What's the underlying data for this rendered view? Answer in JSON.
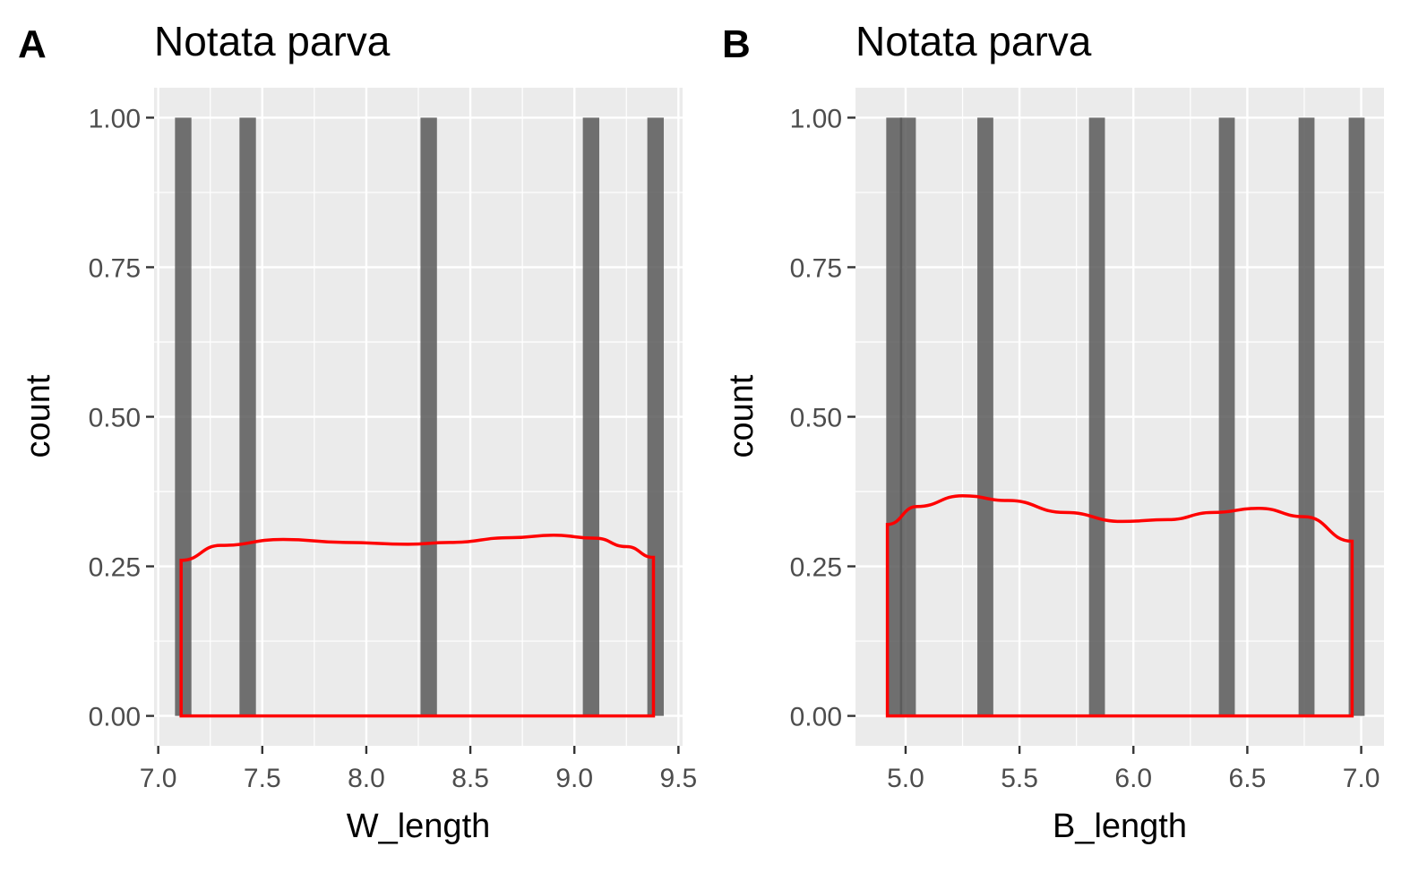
{
  "chart_data": [
    {
      "panel_tag": "A",
      "type": "bar",
      "title": "Notata parva",
      "xlabel": "W_length",
      "ylabel": "count",
      "xlim": [
        6.98,
        9.52
      ],
      "ylim": [
        -0.05,
        1.05
      ],
      "x_ticks": [
        7.0,
        7.5,
        8.0,
        8.5,
        9.0,
        9.5
      ],
      "x_tick_labels": [
        "7.0",
        "7.5",
        "8.0",
        "8.5",
        "9.0",
        "9.5"
      ],
      "y_ticks": [
        0,
        0.25,
        0.5,
        0.75,
        1.0
      ],
      "y_tick_labels": [
        "0.00",
        "0.25",
        "0.50",
        "0.75",
        "1.00"
      ],
      "grid": true,
      "bar_width": 0.079,
      "bar_color": "#595959",
      "bars": [
        {
          "x": 7.12,
          "count": 1
        },
        {
          "x": 7.43,
          "count": 1
        },
        {
          "x": 8.3,
          "count": 1
        },
        {
          "x": 9.08,
          "count": 1
        },
        {
          "x": 9.39,
          "count": 1
        }
      ],
      "density": {
        "color": "#ff0000",
        "x": [
          7.11,
          7.3,
          7.6,
          7.9,
          8.2,
          8.4,
          8.7,
          8.9,
          9.1,
          9.25,
          9.38
        ],
        "y": [
          0.26,
          0.285,
          0.295,
          0.29,
          0.287,
          0.29,
          0.298,
          0.302,
          0.297,
          0.283,
          0.265
        ]
      }
    },
    {
      "panel_tag": "B",
      "type": "bar",
      "title": "Notata parva",
      "xlabel": "B_length",
      "ylabel": "count",
      "xlim": [
        4.78,
        7.1
      ],
      "ylim": [
        -0.05,
        1.05
      ],
      "x_ticks": [
        5.0,
        5.5,
        6.0,
        6.5,
        7.0
      ],
      "x_tick_labels": [
        "5.0",
        "5.5",
        "6.0",
        "6.5",
        "7.0"
      ],
      "y_ticks": [
        0,
        0.25,
        0.5,
        0.75,
        1.0
      ],
      "y_tick_labels": [
        "0.00",
        "0.25",
        "0.50",
        "0.75",
        "1.00"
      ],
      "grid": true,
      "bar_width": 0.07,
      "bar_color": "#595959",
      "bars": [
        {
          "x": 4.95,
          "count": 1
        },
        {
          "x": 5.01,
          "count": 1
        },
        {
          "x": 5.35,
          "count": 1
        },
        {
          "x": 5.84,
          "count": 1
        },
        {
          "x": 6.41,
          "count": 1
        },
        {
          "x": 6.76,
          "count": 1
        },
        {
          "x": 6.98,
          "count": 1
        }
      ],
      "density": {
        "color": "#ff0000",
        "x": [
          4.92,
          5.05,
          5.25,
          5.45,
          5.7,
          5.95,
          6.15,
          6.35,
          6.55,
          6.75,
          6.96
        ],
        "y": [
          0.32,
          0.35,
          0.368,
          0.36,
          0.34,
          0.325,
          0.328,
          0.34,
          0.347,
          0.333,
          0.292
        ]
      }
    }
  ]
}
